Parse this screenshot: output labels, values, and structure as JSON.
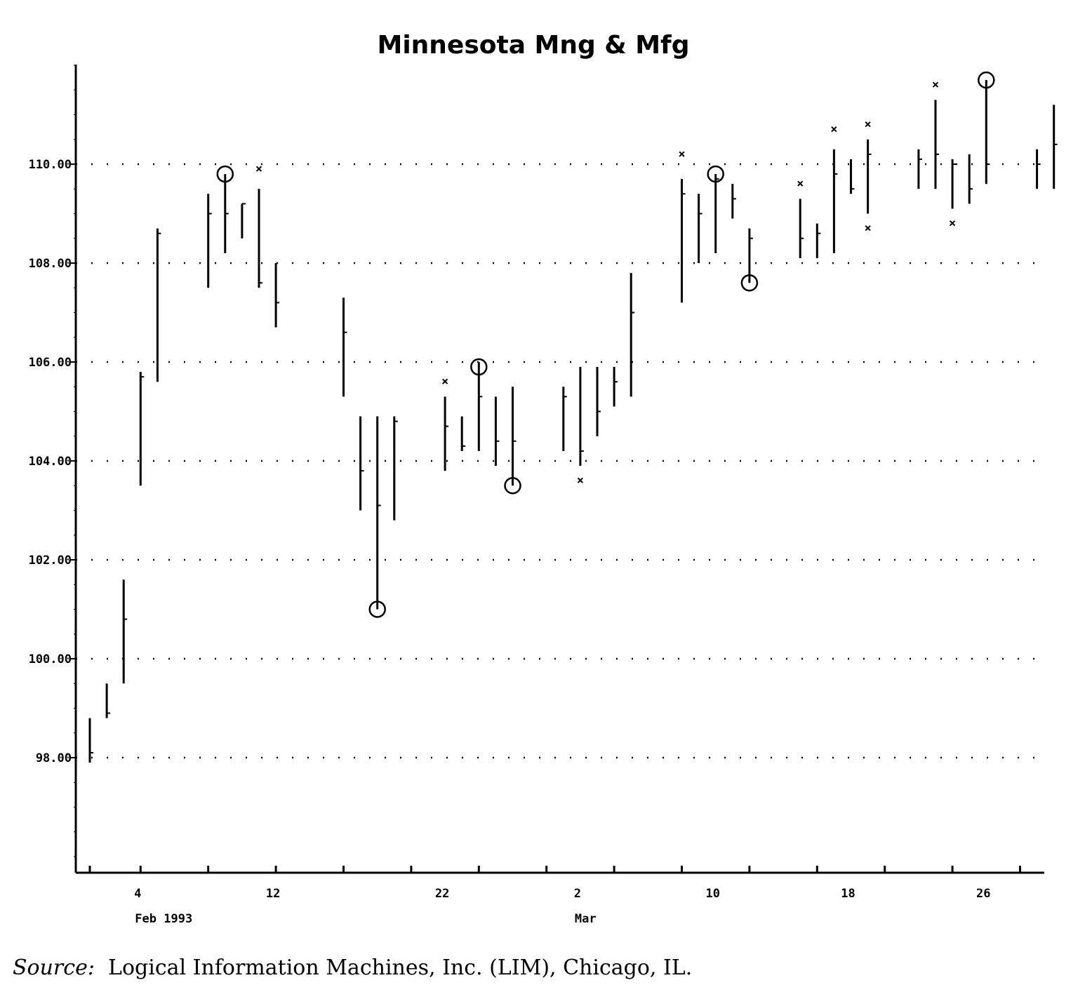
{
  "chart_data": {
    "type": "hlc-bar",
    "title": "Minnesota Mng & Mfg",
    "xlabel": "",
    "ylabel": "",
    "ylim": [
      95.5,
      112.5
    ],
    "yticks": [
      {
        "value": 98,
        "label": "98.00"
      },
      {
        "value": 100,
        "label": "100.00"
      },
      {
        "value": 102,
        "label": "102.00"
      },
      {
        "value": 104,
        "label": "104.00"
      },
      {
        "value": 106,
        "label": "106.00"
      },
      {
        "value": 108,
        "label": "108.00"
      },
      {
        "value": 110,
        "label": "110.00"
      }
    ],
    "grid": "horizontal-dotted",
    "x_day_labels": [
      {
        "day": 4,
        "label": "4"
      },
      {
        "day": 12,
        "label": "12"
      },
      {
        "day": 22,
        "label": "22"
      },
      {
        "day": 30,
        "label": "2"
      },
      {
        "day": 38,
        "label": "10"
      },
      {
        "day": 46,
        "label": "18"
      },
      {
        "day": 54,
        "label": "26"
      }
    ],
    "x_month_labels": [
      {
        "day": 4,
        "label": "Feb 1993"
      },
      {
        "day": 30,
        "label": "Mar"
      }
    ],
    "bars": [
      {
        "day": 1,
        "high": 98.8,
        "low": 97.9,
        "close": 98.1
      },
      {
        "day": 2,
        "high": 99.5,
        "low": 98.8,
        "close": 98.9
      },
      {
        "day": 3,
        "high": 101.6,
        "low": 99.5,
        "close": 100.8
      },
      {
        "day": 4,
        "high": 105.8,
        "low": 103.5,
        "close": 105.7
      },
      {
        "day": 5,
        "high": 108.7,
        "low": 105.6,
        "close": 108.6
      },
      {
        "day": 8,
        "high": 109.4,
        "low": 107.5,
        "close": 109.0
      },
      {
        "day": 9,
        "high": 109.8,
        "low": 108.2,
        "close": 109.0
      },
      {
        "day": 10,
        "high": 109.2,
        "low": 108.5,
        "close": 109.2
      },
      {
        "day": 11,
        "high": 109.5,
        "low": 107.5,
        "close": 107.6
      },
      {
        "day": 12,
        "high": 108.0,
        "low": 106.7,
        "close": 107.2
      },
      {
        "day": 16,
        "high": 107.3,
        "low": 105.3,
        "close": 106.6
      },
      {
        "day": 17,
        "high": 104.9,
        "low": 103.0,
        "close": 103.8
      },
      {
        "day": 18,
        "high": 104.9,
        "low": 101.0,
        "close": 103.1
      },
      {
        "day": 19,
        "high": 104.9,
        "low": 102.8,
        "close": 104.8
      },
      {
        "day": 22,
        "high": 105.3,
        "low": 103.8,
        "close": 104.7
      },
      {
        "day": 23,
        "high": 104.9,
        "low": 104.2,
        "close": 104.3
      },
      {
        "day": 24,
        "high": 106.0,
        "low": 104.2,
        "close": 105.3
      },
      {
        "day": 25,
        "high": 105.3,
        "low": 103.9,
        "close": 104.4
      },
      {
        "day": 26,
        "high": 105.5,
        "low": 103.5,
        "close": 104.4
      },
      {
        "day": 29,
        "high": 105.5,
        "low": 104.2,
        "close": 105.3
      },
      {
        "day": 30,
        "high": 105.9,
        "low": 103.9,
        "close": 104.2
      },
      {
        "day": 31,
        "high": 105.9,
        "low": 104.5,
        "close": 105.0
      },
      {
        "day": 32,
        "high": 105.9,
        "low": 105.1,
        "close": 105.6
      },
      {
        "day": 33,
        "high": 107.8,
        "low": 105.3,
        "close": 107.0
      },
      {
        "day": 36,
        "high": 109.7,
        "low": 107.2,
        "close": 109.4
      },
      {
        "day": 37,
        "high": 109.4,
        "low": 108.0,
        "close": 109.0
      },
      {
        "day": 38,
        "high": 109.8,
        "low": 108.2,
        "close": 109.7
      },
      {
        "day": 39,
        "high": 109.6,
        "low": 108.9,
        "close": 109.3
      },
      {
        "day": 40,
        "high": 108.7,
        "low": 107.6,
        "close": 108.5
      },
      {
        "day": 43,
        "high": 109.3,
        "low": 108.1,
        "close": 108.5
      },
      {
        "day": 44,
        "high": 108.8,
        "low": 108.1,
        "close": 108.6
      },
      {
        "day": 45,
        "high": 110.3,
        "low": 108.2,
        "close": 109.8
      },
      {
        "day": 46,
        "high": 110.1,
        "low": 109.4,
        "close": 109.5
      },
      {
        "day": 47,
        "high": 110.5,
        "low": 109.0,
        "close": 110.2
      },
      {
        "day": 50,
        "high": 110.3,
        "low": 109.5,
        "close": 110.1
      },
      {
        "day": 51,
        "high": 111.3,
        "low": 109.5,
        "close": 110.2
      },
      {
        "day": 52,
        "high": 110.1,
        "low": 109.1,
        "close": 110.0
      },
      {
        "day": 53,
        "high": 110.2,
        "low": 109.2,
        "close": 109.5
      },
      {
        "day": 54,
        "high": 111.7,
        "low": 109.6,
        "close": 110.0
      },
      {
        "day": 57,
        "high": 110.3,
        "low": 109.5,
        "close": 110.0
      },
      {
        "day": 58,
        "high": 111.2,
        "low": 109.5,
        "close": 110.4
      }
    ],
    "x_markers": [
      {
        "day": 11,
        "value": 109.9
      },
      {
        "day": 22,
        "value": 105.6
      },
      {
        "day": 30,
        "value": 103.6
      },
      {
        "day": 36,
        "value": 110.2
      },
      {
        "day": 43,
        "value": 109.6
      },
      {
        "day": 45,
        "value": 110.7
      },
      {
        "day": 47,
        "value": 110.8
      },
      {
        "day": 47,
        "value": 108.7
      },
      {
        "day": 51,
        "value": 111.6
      },
      {
        "day": 52,
        "value": 108.8
      }
    ],
    "circle_markers": [
      {
        "day": 9,
        "value": 109.8
      },
      {
        "day": 18,
        "value": 101.0
      },
      {
        "day": 24,
        "value": 105.9
      },
      {
        "day": 26,
        "value": 103.5
      },
      {
        "day": 38,
        "value": 109.8
      },
      {
        "day": 40,
        "value": 107.6
      },
      {
        "day": 54,
        "value": 111.7
      }
    ]
  },
  "source": {
    "label": "Source:",
    "text": "Logical Information Machines, Inc. (LIM), Chicago, IL."
  },
  "colors": {
    "ink": "#000000",
    "background": "#ffffff"
  }
}
